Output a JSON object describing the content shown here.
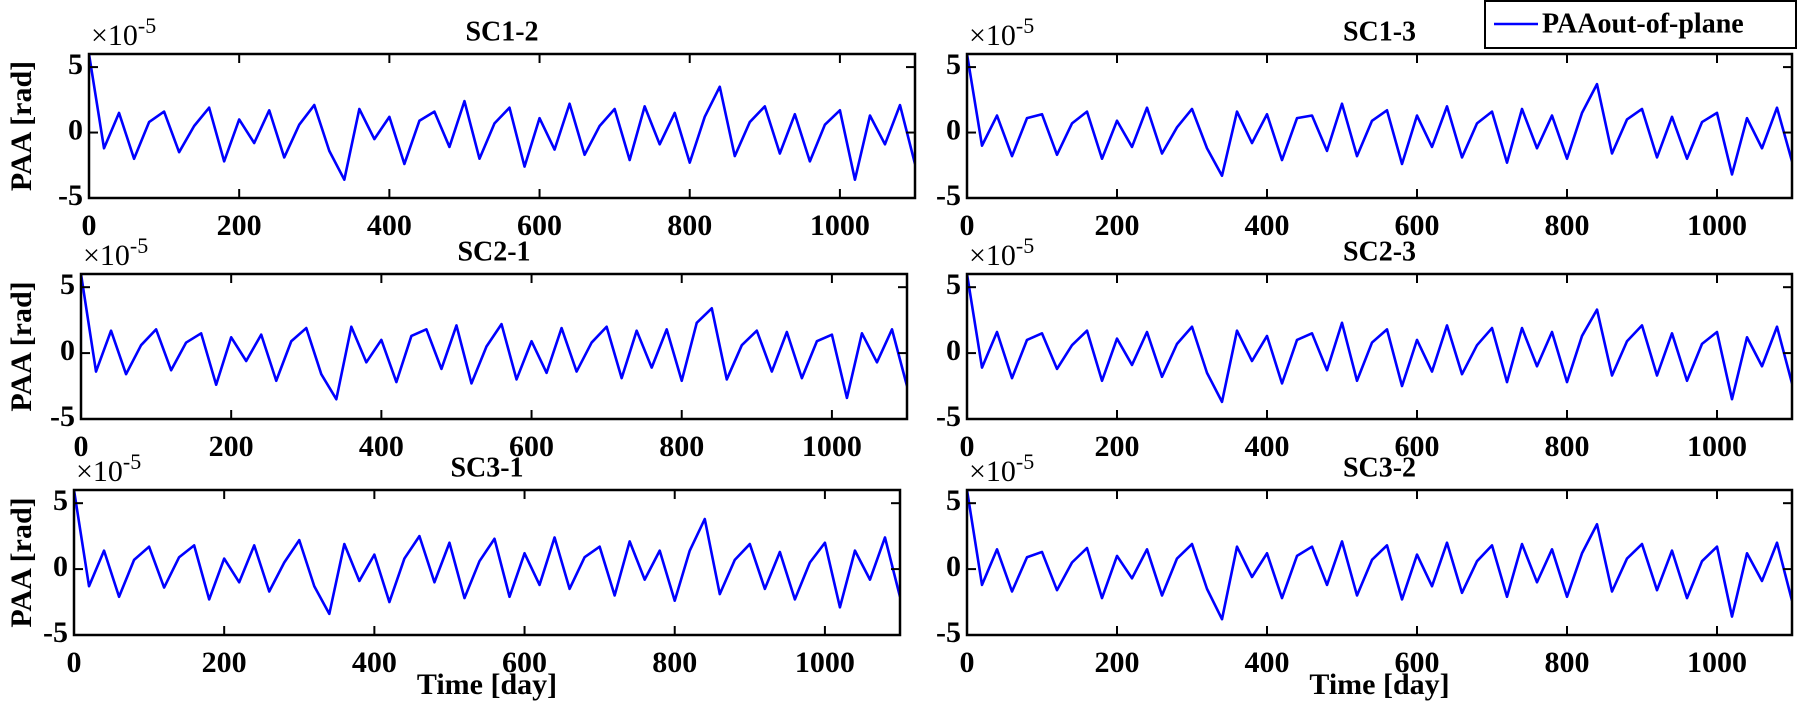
{
  "chart_data": [
    {
      "type": "line",
      "title": "SC1-2",
      "y_label": "PAA [rad]",
      "offset_base": "×10",
      "offset_exponent": "-5",
      "legend": "top-right",
      "x": [
        0,
        20,
        40,
        60,
        80,
        100,
        120,
        140,
        160,
        180,
        200,
        220,
        240,
        260,
        280,
        300,
        320,
        340,
        360,
        380,
        400,
        420,
        440,
        460,
        480,
        500,
        520,
        540,
        560,
        580,
        600,
        620,
        640,
        660,
        680,
        700,
        720,
        740,
        760,
        780,
        800,
        820,
        840,
        860,
        880,
        900,
        920,
        940,
        960,
        980,
        1000,
        1020,
        1040,
        1060,
        1080,
        1100
      ],
      "series": [
        {
          "name": "PAAout-of-plane",
          "color": "#0000ff",
          "values": [
            6,
            -1.2,
            1.5,
            -2.0,
            0.8,
            1.6,
            -1.5,
            0.5,
            1.9,
            -2.2,
            1.0,
            -0.8,
            1.7,
            -1.9,
            0.6,
            2.1,
            -1.4,
            -3.6,
            1.8,
            -0.5,
            1.2,
            -2.4,
            0.9,
            1.6,
            -1.1,
            2.4,
            -2.0,
            0.7,
            1.9,
            -2.6,
            1.1,
            -1.3,
            2.2,
            -1.7,
            0.5,
            1.8,
            -2.1,
            2.0,
            -0.9,
            1.5,
            -2.3,
            1.2,
            3.5,
            -1.8,
            0.8,
            2.0,
            -1.6,
            1.4,
            -2.2,
            0.6,
            1.7,
            -3.6,
            1.3,
            -0.9,
            2.1,
            -2.4
          ]
        }
      ],
      "xlim": [
        0,
        1100
      ],
      "xticks": [
        0,
        200,
        400,
        600,
        800,
        1000
      ],
      "ylim": [
        -5,
        6
      ],
      "yticks": [
        -5,
        0,
        5
      ]
    },
    {
      "type": "line",
      "title": "SC1-3",
      "offset_base": "×10",
      "offset_exponent": "-5",
      "x": [
        0,
        20,
        40,
        60,
        80,
        100,
        120,
        140,
        160,
        180,
        200,
        220,
        240,
        260,
        280,
        300,
        320,
        340,
        360,
        380,
        400,
        420,
        440,
        460,
        480,
        500,
        520,
        540,
        560,
        580,
        600,
        620,
        640,
        660,
        680,
        700,
        720,
        740,
        760,
        780,
        800,
        820,
        840,
        860,
        880,
        900,
        920,
        940,
        960,
        980,
        1000,
        1020,
        1040,
        1060,
        1080,
        1100
      ],
      "series": [
        {
          "color": "#0000ff",
          "values": [
            6,
            -1.0,
            1.3,
            -1.8,
            1.1,
            1.4,
            -1.7,
            0.7,
            1.6,
            -2.0,
            0.9,
            -1.1,
            1.9,
            -1.6,
            0.4,
            1.8,
            -1.2,
            -3.3,
            1.6,
            -0.8,
            1.4,
            -2.1,
            1.1,
            1.3,
            -1.4,
            2.2,
            -1.8,
            0.9,
            1.7,
            -2.4,
            1.3,
            -1.1,
            2.0,
            -1.9,
            0.7,
            1.6,
            -2.3,
            1.8,
            -1.2,
            1.3,
            -2.0,
            1.5,
            3.7,
            -1.6,
            1.0,
            1.8,
            -1.9,
            1.2,
            -2.0,
            0.8,
            1.5,
            -3.2,
            1.1,
            -1.2,
            1.9,
            -2.2
          ]
        }
      ],
      "xlim": [
        0,
        1100
      ],
      "xticks": [
        0,
        200,
        400,
        600,
        800,
        1000
      ],
      "ylim": [
        -5,
        6
      ],
      "yticks": [
        -5,
        0,
        5
      ]
    },
    {
      "type": "line",
      "title": "SC2-1",
      "y_label": "PAA [rad]",
      "offset_base": "×10",
      "offset_exponent": "-5",
      "x": [
        0,
        20,
        40,
        60,
        80,
        100,
        120,
        140,
        160,
        180,
        200,
        220,
        240,
        260,
        280,
        300,
        320,
        340,
        360,
        380,
        400,
        420,
        440,
        460,
        480,
        500,
        520,
        540,
        560,
        580,
        600,
        620,
        640,
        660,
        680,
        700,
        720,
        740,
        760,
        780,
        800,
        820,
        840,
        860,
        880,
        900,
        920,
        940,
        960,
        980,
        1000,
        1020,
        1040,
        1060,
        1080,
        1100
      ],
      "series": [
        {
          "color": "#0000ff",
          "values": [
            6,
            -1.4,
            1.7,
            -1.6,
            0.6,
            1.8,
            -1.3,
            0.8,
            1.5,
            -2.4,
            1.2,
            -0.6,
            1.4,
            -2.1,
            0.9,
            1.9,
            -1.6,
            -3.5,
            2.0,
            -0.7,
            1.0,
            -2.2,
            1.3,
            1.8,
            -1.2,
            2.1,
            -2.3,
            0.5,
            2.2,
            -2.0,
            0.9,
            -1.5,
            1.9,
            -1.4,
            0.8,
            2.0,
            -1.9,
            1.7,
            -1.1,
            1.8,
            -2.1,
            2.3,
            3.4,
            -2.0,
            0.6,
            1.7,
            -1.4,
            1.6,
            -1.9,
            0.9,
            1.4,
            -3.4,
            1.5,
            -0.7,
            1.8,
            -2.5
          ]
        }
      ],
      "xlim": [
        0,
        1100
      ],
      "xticks": [
        0,
        200,
        400,
        600,
        800,
        1000
      ],
      "ylim": [
        -5,
        6
      ],
      "yticks": [
        -5,
        0,
        5
      ]
    },
    {
      "type": "line",
      "title": "SC2-3",
      "offset_base": "×10",
      "offset_exponent": "-5",
      "x": [
        0,
        20,
        40,
        60,
        80,
        100,
        120,
        140,
        160,
        180,
        200,
        220,
        240,
        260,
        280,
        300,
        320,
        340,
        360,
        380,
        400,
        420,
        440,
        460,
        480,
        500,
        520,
        540,
        560,
        580,
        600,
        620,
        640,
        660,
        680,
        700,
        720,
        740,
        760,
        780,
        800,
        820,
        840,
        860,
        880,
        900,
        920,
        940,
        960,
        980,
        1000,
        1020,
        1040,
        1060,
        1080,
        1100
      ],
      "series": [
        {
          "color": "#0000ff",
          "values": [
            6,
            -1.1,
            1.6,
            -1.9,
            1.0,
            1.5,
            -1.2,
            0.6,
            1.7,
            -2.1,
            1.1,
            -0.9,
            1.6,
            -1.8,
            0.7,
            2.0,
            -1.5,
            -3.7,
            1.7,
            -0.6,
            1.3,
            -2.3,
            1.0,
            1.5,
            -1.3,
            2.3,
            -2.1,
            0.8,
            1.8,
            -2.5,
            1.0,
            -1.4,
            2.1,
            -1.6,
            0.6,
            1.9,
            -2.2,
            1.9,
            -1.0,
            1.6,
            -2.2,
            1.3,
            3.3,
            -1.7,
            0.9,
            2.1,
            -1.7,
            1.5,
            -2.1,
            0.7,
            1.6,
            -3.5,
            1.2,
            -1.0,
            2.0,
            -2.3
          ]
        }
      ],
      "xlim": [
        0,
        1100
      ],
      "xticks": [
        0,
        200,
        400,
        600,
        800,
        1000
      ],
      "ylim": [
        -5,
        6
      ],
      "yticks": [
        -5,
        0,
        5
      ]
    },
    {
      "type": "line",
      "title": "SC3-1",
      "y_label": "PAA [rad]",
      "x_label": "Time [day]",
      "offset_base": "×10",
      "offset_exponent": "-5",
      "x": [
        0,
        20,
        40,
        60,
        80,
        100,
        120,
        140,
        160,
        180,
        200,
        220,
        240,
        260,
        280,
        300,
        320,
        340,
        360,
        380,
        400,
        420,
        440,
        460,
        480,
        500,
        520,
        540,
        560,
        580,
        600,
        620,
        640,
        660,
        680,
        700,
        720,
        740,
        760,
        780,
        800,
        820,
        840,
        860,
        880,
        900,
        920,
        940,
        960,
        980,
        1000,
        1020,
        1040,
        1060,
        1080,
        1100
      ],
      "series": [
        {
          "color": "#0000ff",
          "values": [
            6,
            -1.3,
            1.4,
            -2.1,
            0.7,
            1.7,
            -1.4,
            0.9,
            1.8,
            -2.3,
            0.8,
            -1.0,
            1.8,
            -1.7,
            0.5,
            2.2,
            -1.3,
            -3.4,
            1.9,
            -0.9,
            1.1,
            -2.5,
            0.8,
            2.5,
            -1.0,
            2.0,
            -2.2,
            0.6,
            2.3,
            -2.1,
            1.2,
            -1.2,
            2.4,
            -1.5,
            0.9,
            1.7,
            -2.0,
            2.1,
            -0.8,
            1.4,
            -2.4,
            1.4,
            3.8,
            -1.9,
            0.7,
            1.9,
            -1.5,
            1.3,
            -2.3,
            0.5,
            2.0,
            -2.9,
            1.4,
            -0.8,
            2.4,
            -2.1
          ]
        }
      ],
      "xlim": [
        0,
        1100
      ],
      "xticks": [
        0,
        200,
        400,
        600,
        800,
        1000
      ],
      "ylim": [
        -5,
        6
      ],
      "yticks": [
        -5,
        0,
        5
      ]
    },
    {
      "type": "line",
      "title": "SC3-2",
      "x_label": "Time [day]",
      "offset_base": "×10",
      "offset_exponent": "-5",
      "x": [
        0,
        20,
        40,
        60,
        80,
        100,
        120,
        140,
        160,
        180,
        200,
        220,
        240,
        260,
        280,
        300,
        320,
        340,
        360,
        380,
        400,
        420,
        440,
        460,
        480,
        500,
        520,
        540,
        560,
        580,
        600,
        620,
        640,
        660,
        680,
        700,
        720,
        740,
        760,
        780,
        800,
        820,
        840,
        860,
        880,
        900,
        920,
        940,
        960,
        980,
        1000,
        1020,
        1040,
        1060,
        1080,
        1100
      ],
      "series": [
        {
          "color": "#0000ff",
          "values": [
            6,
            -1.2,
            1.5,
            -1.7,
            0.9,
            1.3,
            -1.6,
            0.5,
            1.6,
            -2.2,
            1.0,
            -0.7,
            1.5,
            -2.0,
            0.8,
            1.9,
            -1.5,
            -3.8,
            1.7,
            -0.6,
            1.2,
            -2.2,
            1.0,
            1.7,
            -1.2,
            2.1,
            -2.0,
            0.7,
            1.8,
            -2.3,
            1.1,
            -1.3,
            2.0,
            -1.8,
            0.6,
            1.8,
            -2.1,
            1.9,
            -1.0,
            1.5,
            -2.1,
            1.2,
            3.4,
            -1.7,
            0.8,
            1.9,
            -1.6,
            1.4,
            -2.2,
            0.6,
            1.7,
            -3.6,
            1.2,
            -0.9,
            2.0,
            -2.4
          ]
        }
      ],
      "xlim": [
        0,
        1100
      ],
      "xticks": [
        0,
        200,
        400,
        600,
        800,
        1000
      ],
      "ylim": [
        -5,
        6
      ],
      "yticks": [
        -5,
        0,
        5
      ]
    }
  ]
}
